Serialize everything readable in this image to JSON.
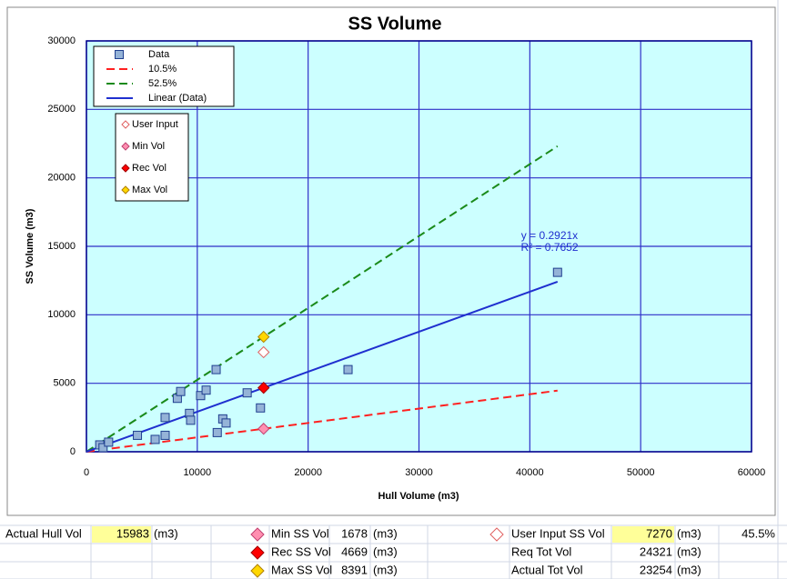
{
  "chart_data": {
    "type": "scatter",
    "title": "SS Volume",
    "x_label": "Hull Volume (m3)",
    "y_label": "SS Volume (m3)",
    "xlim": [
      0,
      60000
    ],
    "xticks": [
      0,
      10000,
      20000,
      30000,
      40000,
      50000,
      60000
    ],
    "ylim": [
      0,
      30000
    ],
    "yticks": [
      0,
      5000,
      10000,
      15000,
      20000,
      25000,
      30000
    ],
    "grid": true,
    "legend_position": "upper left",
    "series": [
      {
        "name": "Data",
        "color": "#95b3d7",
        "marker": "square",
        "x": [
          1200,
          1500,
          2000,
          4600,
          6200,
          7100,
          7100,
          8200,
          8500,
          9300,
          9400,
          10300,
          10800,
          11700,
          11800,
          12300,
          12600,
          14500,
          15700,
          23600,
          42500
        ],
        "values": [
          500,
          300,
          700,
          1200,
          900,
          1200,
          2500,
          3900,
          4400,
          2800,
          2300,
          4100,
          4500,
          6000,
          1400,
          2400,
          2100,
          4300,
          3200,
          6000,
          13100
        ]
      },
      {
        "name": "10.5%",
        "color": "#ff2020",
        "line": "dashed",
        "x": [
          0,
          42500
        ],
        "values": [
          0,
          4463
        ]
      },
      {
        "name": "52.5%",
        "color": "#1a8a1a",
        "line": "dashed",
        "x": [
          0,
          42500
        ],
        "values": [
          0,
          22313
        ]
      },
      {
        "name": "Linear (Data)",
        "color": "#1f2fcf",
        "line": "solid",
        "x": [
          0,
          42500
        ],
        "values": [
          0,
          12414
        ]
      }
    ],
    "marker_series": [
      {
        "name": "User Input",
        "color": "#ffffff",
        "edge": "#e06060",
        "marker": "diamond",
        "x": [
          15983
        ],
        "values": [
          7270
        ]
      },
      {
        "name": "Min Vol",
        "color": "#ff8fb0",
        "edge": "#c04070",
        "marker": "diamond",
        "x": [
          15983
        ],
        "values": [
          1678
        ]
      },
      {
        "name": "Rec Vol",
        "color": "#ff0000",
        "edge": "#a00000",
        "marker": "diamond",
        "x": [
          15983
        ],
        "values": [
          4669
        ]
      },
      {
        "name": "Max Vol",
        "color": "#ffd700",
        "edge": "#b08000",
        "marker": "diamond",
        "x": [
          15983
        ],
        "values": [
          8391
        ]
      }
    ],
    "annotations": [
      "y = 0.2921x",
      "R² = 0.7652"
    ]
  },
  "sheet": {
    "hull": [
      "Actual Hull Vol",
      15983,
      "(m3)"
    ],
    "ss": [
      [
        "Min SS Vol",
        1678,
        "(m3)"
      ],
      [
        "Rec SS Vol",
        4669,
        "(m3)"
      ],
      [
        "Max SS Vol",
        8391,
        "(m3)"
      ]
    ],
    "totals": [
      [
        "User Input SS Vol",
        7270,
        "(m3)",
        "45.5%"
      ],
      [
        "Req Tot Vol",
        24321,
        "(m3)"
      ],
      [
        "Actual Tot Vol",
        23254,
        "(m3)"
      ]
    ]
  }
}
